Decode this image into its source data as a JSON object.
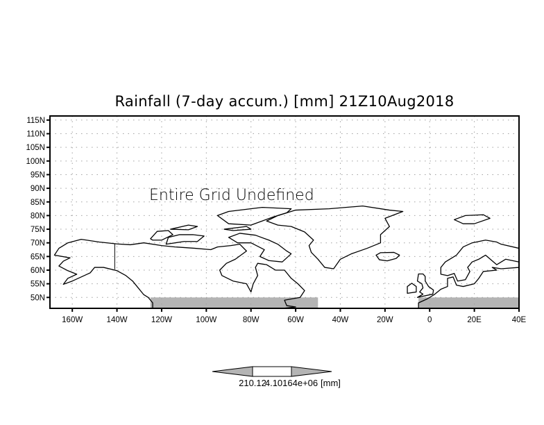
{
  "chart_data": {
    "type": "map",
    "title": "Rainfall (7-day accum.) [mm] 21Z10Aug2018",
    "annotation": "Entire Grid Undefined",
    "lon_range": [
      -170,
      40
    ],
    "lat_range": [
      46,
      116.5
    ],
    "grid": true,
    "x_ticks": [
      {
        "value": -160,
        "label": "160W"
      },
      {
        "value": -140,
        "label": "140W"
      },
      {
        "value": -120,
        "label": "120W"
      },
      {
        "value": -100,
        "label": "100W"
      },
      {
        "value": -80,
        "label": "80W"
      },
      {
        "value": -60,
        "label": "60W"
      },
      {
        "value": -40,
        "label": "40W"
      },
      {
        "value": -20,
        "label": "20W"
      },
      {
        "value": 0,
        "label": "0"
      },
      {
        "value": 20,
        "label": "20E"
      },
      {
        "value": 40,
        "label": "40E"
      }
    ],
    "y_ticks": [
      {
        "value": 115,
        "label": "115N"
      },
      {
        "value": 110,
        "label": "110N"
      },
      {
        "value": 105,
        "label": "105N"
      },
      {
        "value": 100,
        "label": "100N"
      },
      {
        "value": 95,
        "label": "95N"
      },
      {
        "value": 90,
        "label": "90N"
      },
      {
        "value": 85,
        "label": "85N"
      },
      {
        "value": 80,
        "label": "80N"
      },
      {
        "value": 75,
        "label": "75N"
      },
      {
        "value": 70,
        "label": "70N"
      },
      {
        "value": 65,
        "label": "65N"
      },
      {
        "value": 60,
        "label": "60N"
      },
      {
        "value": 55,
        "label": "55N"
      },
      {
        "value": 50,
        "label": "50N"
      }
    ],
    "colorbar": {
      "labels": [
        "210.12",
        "4.10164e+06"
      ],
      "units": "[mm]",
      "colors": {
        "triangles": "#b4b4b4",
        "box": "#ffffff"
      }
    },
    "colors": {
      "masked": "#b4b4b4",
      "grid": "#a0a0a0",
      "coast": "#000000"
    }
  }
}
